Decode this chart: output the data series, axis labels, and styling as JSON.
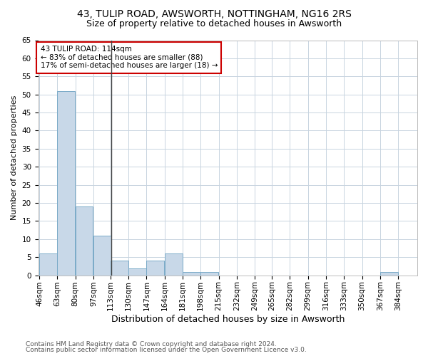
{
  "title1": "43, TULIP ROAD, AWSWORTH, NOTTINGHAM, NG16 2RS",
  "title2": "Size of property relative to detached houses in Awsworth",
  "xlabel": "Distribution of detached houses by size in Awsworth",
  "ylabel": "Number of detached properties",
  "bin_labels": [
    "46sqm",
    "63sqm",
    "80sqm",
    "97sqm",
    "113sqm",
    "130sqm",
    "147sqm",
    "164sqm",
    "181sqm",
    "198sqm",
    "215sqm",
    "232sqm",
    "249sqm",
    "265sqm",
    "282sqm",
    "299sqm",
    "316sqm",
    "333sqm",
    "350sqm",
    "367sqm",
    "384sqm"
  ],
  "bin_edges": [
    46,
    63,
    80,
    97,
    113,
    130,
    147,
    164,
    181,
    198,
    215,
    232,
    249,
    265,
    282,
    299,
    316,
    333,
    350,
    367,
    384
  ],
  "values": [
    6,
    51,
    19,
    11,
    4,
    2,
    4,
    6,
    1,
    1,
    0,
    0,
    0,
    0,
    0,
    0,
    0,
    0,
    0,
    1,
    0
  ],
  "bar_color": "#c8d8e8",
  "bar_edge_color": "#7aaac8",
  "property_size": 114,
  "vline_color": "#444444",
  "annotation_text": "43 TULIP ROAD: 114sqm\n← 83% of detached houses are smaller (88)\n17% of semi-detached houses are larger (18) →",
  "annotation_box_color": "#ffffff",
  "annotation_box_edge_color": "#cc0000",
  "ylim": [
    0,
    65
  ],
  "yticks": [
    0,
    5,
    10,
    15,
    20,
    25,
    30,
    35,
    40,
    45,
    50,
    55,
    60,
    65
  ],
  "footer1": "Contains HM Land Registry data © Crown copyright and database right 2024.",
  "footer2": "Contains public sector information licensed under the Open Government Licence v3.0.",
  "bg_color": "#ffffff",
  "grid_color": "#c8d4e0",
  "title1_fontsize": 10,
  "title2_fontsize": 9,
  "xlabel_fontsize": 9,
  "ylabel_fontsize": 8,
  "tick_fontsize": 7.5,
  "annotation_fontsize": 7.5,
  "footer_fontsize": 6.5
}
